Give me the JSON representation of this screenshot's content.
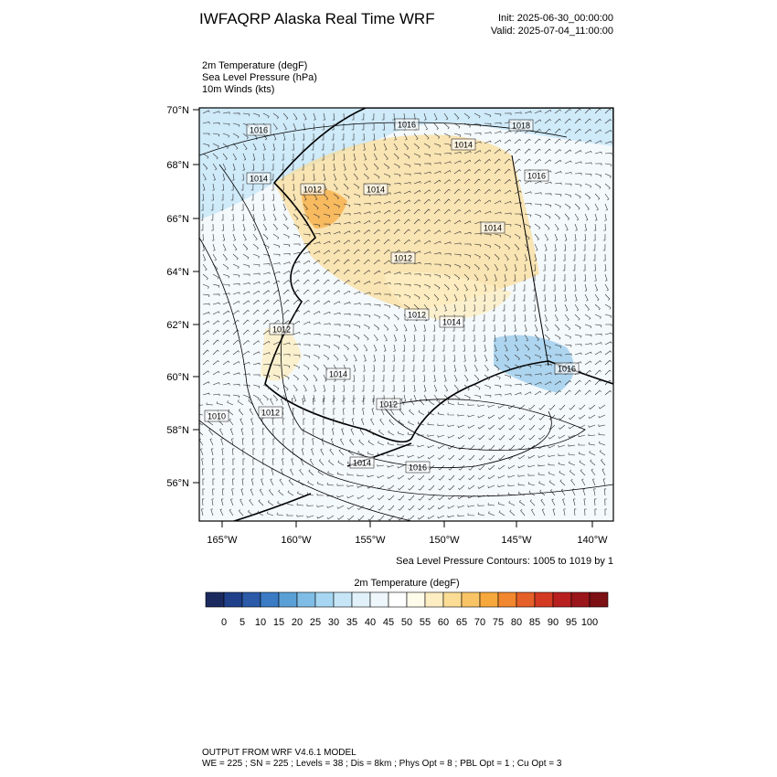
{
  "header": {
    "title": "IWFAQRP Alaska Real Time WRF",
    "init": "Init: 2025-06-30_00:00:00",
    "valid": "Valid: 2025-07-04_11:00:00"
  },
  "fields": [
    "2m Temperature   (degF)",
    "Sea Level Pressure   (hPa)",
    "10m Winds   (kts)"
  ],
  "map": {
    "lat_labels": [
      "70°N",
      "68°N",
      "66°N",
      "64°N",
      "62°N",
      "60°N",
      "58°N",
      "56°N"
    ],
    "lon_labels": [
      "165°W",
      "160°W",
      "155°W",
      "150°W",
      "145°W",
      "140°W"
    ],
    "contour_labels": [
      1016,
      1016,
      1018,
      1014,
      1014,
      1016,
      1012,
      1014,
      1014,
      1012,
      1012,
      1014,
      1012,
      1014,
      1016,
      1012,
      1010,
      1012,
      1014,
      1016
    ],
    "contour_note": "Sea Level Pressure Contours: 1005 to 1019 by 1"
  },
  "colorbar": {
    "title": "2m Temperature  (degF)",
    "labels": [
      0,
      5,
      10,
      15,
      20,
      25,
      30,
      35,
      40,
      45,
      50,
      55,
      60,
      65,
      70,
      75,
      80,
      85,
      90,
      95,
      100
    ],
    "colors": [
      "#1b2a5e",
      "#1f3f8a",
      "#2a5aa8",
      "#3a7bc4",
      "#5aa0d6",
      "#7fbde6",
      "#a6d6f2",
      "#c6e6f7",
      "#e0f1fa",
      "#eef7fc",
      "#ffffff",
      "#fffbea",
      "#fdedc2",
      "#fbdc94",
      "#f9c466",
      "#f6a83c",
      "#f1872e",
      "#e55f28",
      "#d43a22",
      "#b8201f",
      "#9a161a",
      "#7c1015"
    ]
  },
  "footer": {
    "line1": "OUTPUT FROM WRF V4.6.1 MODEL",
    "line2": "WE = 225 ; SN = 225 ; Levels = 38 ; Dis = 8km ; Phys Opt = 8 ; PBL Opt = 1 ; Cu Opt = 3"
  }
}
